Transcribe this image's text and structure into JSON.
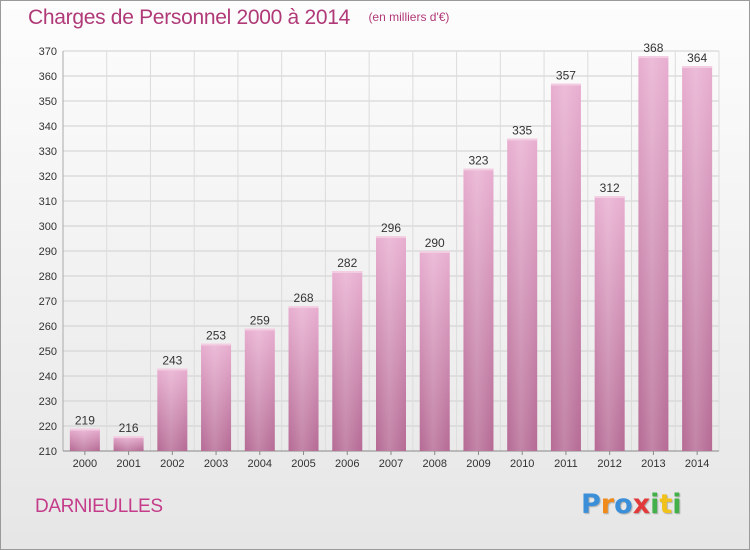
{
  "title": "Charges de Personnel 2000 à 2014",
  "subtitle": "(en milliers d'€)",
  "commune": "DARNIEULLES",
  "logo": {
    "text": "Proxiti",
    "letters": [
      "P",
      "r",
      "o",
      "x",
      "i",
      "t",
      "i"
    ],
    "colors": [
      "#3a8fd8",
      "#f08a1a",
      "#3a8fd8",
      "#e23a3a",
      "#43b04a",
      "#f0c21a",
      "#43b04a"
    ]
  },
  "colors": {
    "bar": "#d98ab8",
    "bar_light": "#e9afcf",
    "bar_dark": "#b86894",
    "title": "#b03a78"
  },
  "chart_data": {
    "type": "bar",
    "title": "Charges de Personnel 2000 à 2014",
    "subtitle": "(en milliers d'€)",
    "categories": [
      "2000",
      "2001",
      "2002",
      "2003",
      "2004",
      "2005",
      "2006",
      "2007",
      "2008",
      "2009",
      "2010",
      "2011",
      "2012",
      "2013",
      "2014"
    ],
    "values": [
      219,
      216,
      243,
      253,
      259,
      268,
      282,
      296,
      290,
      323,
      335,
      357,
      312,
      368,
      364
    ],
    "ylim": [
      210,
      370
    ],
    "yticks": [
      210,
      220,
      230,
      240,
      250,
      260,
      270,
      280,
      290,
      300,
      310,
      320,
      330,
      340,
      350,
      360,
      370
    ],
    "grid": true,
    "data_labels": true
  }
}
